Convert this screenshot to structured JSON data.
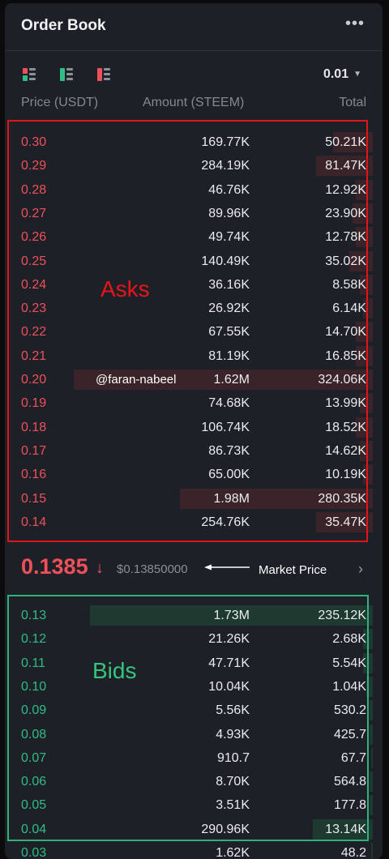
{
  "header": {
    "title": "Order Book",
    "more_icon": "more-horizontal-icon"
  },
  "toolbar": {
    "views": [
      "both-sides-view-icon",
      "bids-only-view-icon",
      "asks-only-view-icon"
    ],
    "precision": "0.01"
  },
  "columns": {
    "price": "Price (USDT)",
    "amount": "Amount (STEEM)",
    "total": "Total"
  },
  "colors": {
    "ask": "#f0505a",
    "bid": "#2fbd85",
    "annotation_asks": "#e0141b",
    "annotation_bids": "#30b27a"
  },
  "asks": [
    {
      "price": "0.30",
      "amount": "169.77K",
      "total": "50.21K",
      "depth": 0.12
    },
    {
      "price": "0.29",
      "amount": "284.19K",
      "total": "81.47K",
      "depth": 0.17
    },
    {
      "price": "0.28",
      "amount": "46.76K",
      "total": "12.92K",
      "depth": 0.05
    },
    {
      "price": "0.27",
      "amount": "89.96K",
      "total": "23.90K",
      "depth": 0.06
    },
    {
      "price": "0.26",
      "amount": "49.74K",
      "total": "12.78K",
      "depth": 0.05
    },
    {
      "price": "0.25",
      "amount": "140.49K",
      "total": "35.02K",
      "depth": 0.07
    },
    {
      "price": "0.24",
      "amount": "36.16K",
      "total": "8.58K",
      "depth": 0.04
    },
    {
      "price": "0.23",
      "amount": "26.92K",
      "total": "6.14K",
      "depth": 0.03
    },
    {
      "price": "0.22",
      "amount": "67.55K",
      "total": "14.70K",
      "depth": 0.05
    },
    {
      "price": "0.21",
      "amount": "81.19K",
      "total": "16.85K",
      "depth": 0.05
    },
    {
      "price": "0.20",
      "amount": "1.62M",
      "total": "324.06K",
      "depth": 0.9
    },
    {
      "price": "0.19",
      "amount": "74.68K",
      "total": "13.99K",
      "depth": 0.04
    },
    {
      "price": "0.18",
      "amount": "106.74K",
      "total": "18.52K",
      "depth": 0.05
    },
    {
      "price": "0.17",
      "amount": "86.73K",
      "total": "14.62K",
      "depth": 0.04
    },
    {
      "price": "0.16",
      "amount": "65.00K",
      "total": "10.19K",
      "depth": 0.03
    },
    {
      "price": "0.15",
      "amount": "1.98M",
      "total": "280.35K",
      "depth": 0.58
    },
    {
      "price": "0.14",
      "amount": "254.76K",
      "total": "35.47K",
      "depth": 0.17
    }
  ],
  "market": {
    "price": "0.1385",
    "direction_icon": "arrow-down-icon",
    "usd_price": "$0.13850000",
    "annotation": "Market Price",
    "chevron_icon": "chevron-right-icon"
  },
  "bids": [
    {
      "price": "0.13",
      "amount": "1.73M",
      "total": "235.12K",
      "depth": 0.85
    },
    {
      "price": "0.12",
      "amount": "21.26K",
      "total": "2.68K",
      "depth": 0.03
    },
    {
      "price": "0.11",
      "amount": "47.71K",
      "total": "5.54K",
      "depth": 0.03
    },
    {
      "price": "0.10",
      "amount": "10.04K",
      "total": "1.04K",
      "depth": 0.02
    },
    {
      "price": "0.09",
      "amount": "5.56K",
      "total": "530.2",
      "depth": 0.01
    },
    {
      "price": "0.08",
      "amount": "4.93K",
      "total": "425.7",
      "depth": 0.01
    },
    {
      "price": "0.07",
      "amount": "910.7",
      "total": "67.7",
      "depth": 0.005
    },
    {
      "price": "0.06",
      "amount": "8.70K",
      "total": "564.8",
      "depth": 0.01
    },
    {
      "price": "0.05",
      "amount": "3.51K",
      "total": "177.8",
      "depth": 0.01
    },
    {
      "price": "0.04",
      "amount": "290.96K",
      "total": "13.14K",
      "depth": 0.18
    },
    {
      "price": "0.03",
      "amount": "1.62K",
      "total": "48.2",
      "depth": 0.005
    }
  ],
  "annotations": {
    "asks_label": "Asks",
    "bids_label": "Bids",
    "watermark": "@faran-nabeel"
  }
}
